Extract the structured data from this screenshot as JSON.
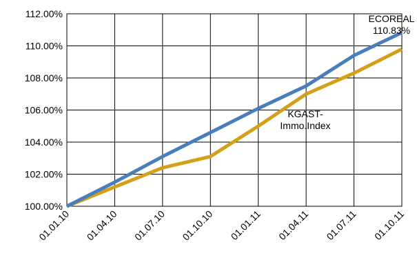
{
  "chart_data": {
    "type": "line",
    "title": "",
    "xlabel": "",
    "ylabel": "",
    "categories": [
      "01.01.10",
      "01.04.10",
      "01.07.10",
      "01.10.10",
      "01.01.11",
      "01.04.11",
      "01.07.11",
      "01.10.11"
    ],
    "ylim": [
      100,
      112
    ],
    "yticks": [
      "100.00%",
      "102.00%",
      "104.00%",
      "106.00%",
      "108.00%",
      "110.00%",
      "112.00%"
    ],
    "grid": true,
    "series": [
      {
        "name": "ECOREAL",
        "color": "#4a7ebb",
        "values": [
          100.0,
          101.5,
          103.1,
          104.6,
          106.1,
          107.5,
          109.4,
          110.83
        ]
      },
      {
        "name": "KGAST-Immo.Index",
        "color": "#d4a017",
        "values": [
          100.0,
          101.2,
          102.4,
          103.1,
          105.0,
          107.0,
          108.3,
          109.8
        ]
      }
    ],
    "annotations": [
      {
        "series": "ECOREAL",
        "lines": [
          "ECOREAL",
          "110.83%"
        ]
      },
      {
        "series": "KGAST-Immo.Index",
        "lines": [
          "KGAST-",
          "Immo.Index"
        ]
      }
    ]
  }
}
